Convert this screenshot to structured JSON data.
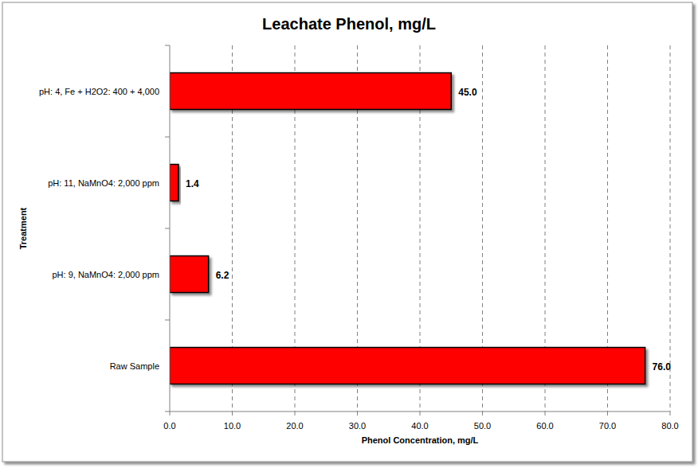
{
  "chart_data": {
    "type": "bar",
    "title": "Leachate Phenol, mg/L",
    "xlabel": "Phenol Concentration, mg/L",
    "ylabel": "Treatment",
    "orientation": "horizontal",
    "categories": [
      "Raw Sample",
      "pH: 9, NaMnO4: 2,000 ppm",
      "pH: 11, NaMnO4: 2,000 ppm",
      "pH: 4, Fe + H2O2: 400 + 4,000"
    ],
    "values": [
      76,
      6.2,
      1.4,
      45
    ],
    "value_labels": [
      "76.0",
      "6.2",
      "1.4",
      "45.0"
    ],
    "color": "#ff0000",
    "xlim": [
      0,
      80
    ],
    "xticks": [
      {
        "value": 0,
        "label": "0.0"
      },
      {
        "value": 10,
        "label": "10.0"
      },
      {
        "value": 20,
        "label": "20.0"
      },
      {
        "value": 30,
        "label": "30.0"
      },
      {
        "value": 40,
        "label": "40.0"
      },
      {
        "value": 50,
        "label": "50.0"
      },
      {
        "value": 60,
        "label": "60.0"
      },
      {
        "value": 70,
        "label": "70.0"
      },
      {
        "value": 80,
        "label": "80.0"
      }
    ],
    "grid": true,
    "data_labels": true
  }
}
